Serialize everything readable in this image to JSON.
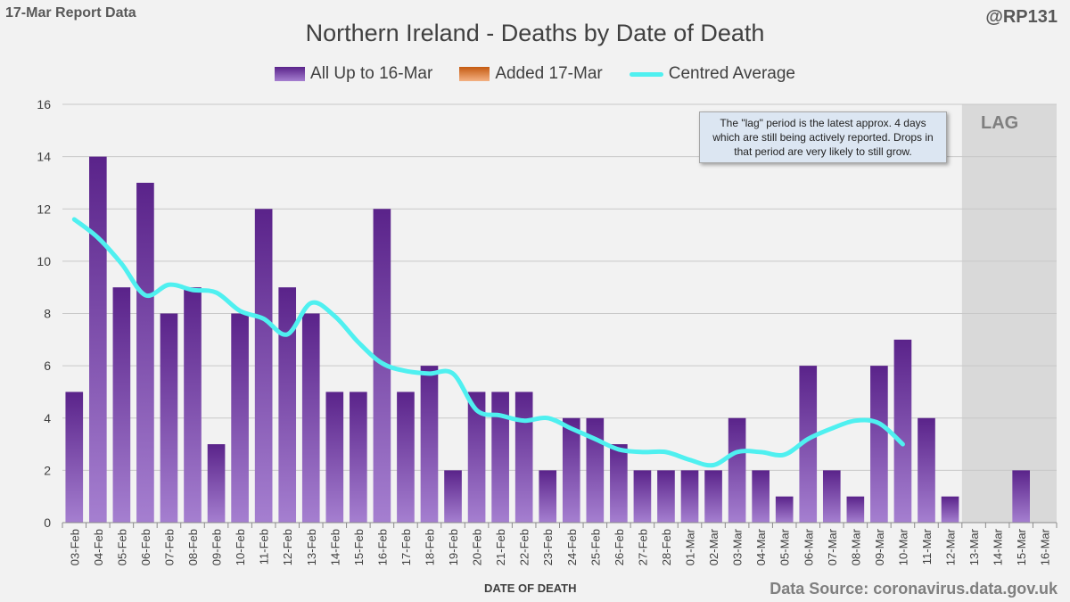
{
  "header": {
    "report_label": "17-Mar Report Data",
    "handle": "@RP131"
  },
  "chart_data": {
    "type": "bar",
    "title": "Northern Ireland - Deaths by Date of Death",
    "xlabel": "DATE OF DEATH",
    "ylabel": "",
    "ylim": [
      0,
      16
    ],
    "yticks": [
      0,
      2,
      4,
      6,
      8,
      10,
      12,
      14,
      16
    ],
    "grid": true,
    "legend_position": "top-center",
    "categories": [
      "03-Feb",
      "04-Feb",
      "05-Feb",
      "06-Feb",
      "07-Feb",
      "08-Feb",
      "09-Feb",
      "10-Feb",
      "11-Feb",
      "12-Feb",
      "13-Feb",
      "14-Feb",
      "15-Feb",
      "16-Feb",
      "17-Feb",
      "18-Feb",
      "19-Feb",
      "20-Feb",
      "21-Feb",
      "22-Feb",
      "23-Feb",
      "24-Feb",
      "25-Feb",
      "26-Feb",
      "27-Feb",
      "28-Feb",
      "01-Mar",
      "02-Mar",
      "03-Mar",
      "04-Mar",
      "05-Mar",
      "06-Mar",
      "07-Mar",
      "08-Mar",
      "09-Mar",
      "10-Mar",
      "11-Mar",
      "12-Mar",
      "13-Mar",
      "14-Mar",
      "15-Mar",
      "16-Mar"
    ],
    "series": [
      {
        "name": "All Up to 16-Mar",
        "kind": "bar",
        "color": "#7030a0",
        "values": [
          5,
          14,
          9,
          13,
          8,
          9,
          3,
          8,
          12,
          9,
          8,
          5,
          5,
          12,
          5,
          6,
          2,
          5,
          5,
          5,
          2,
          4,
          4,
          3,
          2,
          2,
          2,
          2,
          4,
          2,
          1,
          6,
          2,
          1,
          6,
          7,
          4,
          1,
          0,
          0,
          2,
          0
        ]
      },
      {
        "name": "Added 17-Mar",
        "kind": "bar",
        "color": "#e36c09",
        "values": [
          0,
          0,
          0,
          0,
          0,
          0,
          0,
          0,
          0,
          0,
          0,
          0,
          0,
          0,
          0,
          0,
          0,
          0,
          0,
          0,
          0,
          0,
          0,
          0,
          0,
          0,
          0,
          0,
          0,
          0,
          0,
          0,
          0,
          0,
          0,
          0,
          0,
          0,
          0,
          0,
          0,
          0
        ]
      },
      {
        "name": "Centred Average",
        "kind": "line",
        "color": "#4ff0f0",
        "values": [
          11.6,
          10.9,
          9.9,
          8.7,
          9.1,
          8.9,
          8.8,
          8.1,
          7.8,
          7.2,
          8.4,
          7.9,
          6.9,
          6.1,
          5.8,
          5.7,
          5.7,
          4.3,
          4.1,
          3.9,
          4.0,
          3.6,
          3.2,
          2.8,
          2.7,
          2.7,
          2.4,
          2.2,
          2.7,
          2.7,
          2.6,
          3.2,
          3.6,
          3.9,
          3.8,
          3.0,
          null,
          null,
          null,
          null,
          null,
          null
        ]
      }
    ],
    "annotations": {
      "lag_label": "LAG",
      "lag_start_category": "13-Mar",
      "note": "The \"lag\" period is the latest approx. 4 days which are still being actively reported.  Drops in that period are very likely to still grow."
    }
  },
  "footer": {
    "source": "Data Source: coronavirus.data.gov.uk"
  }
}
